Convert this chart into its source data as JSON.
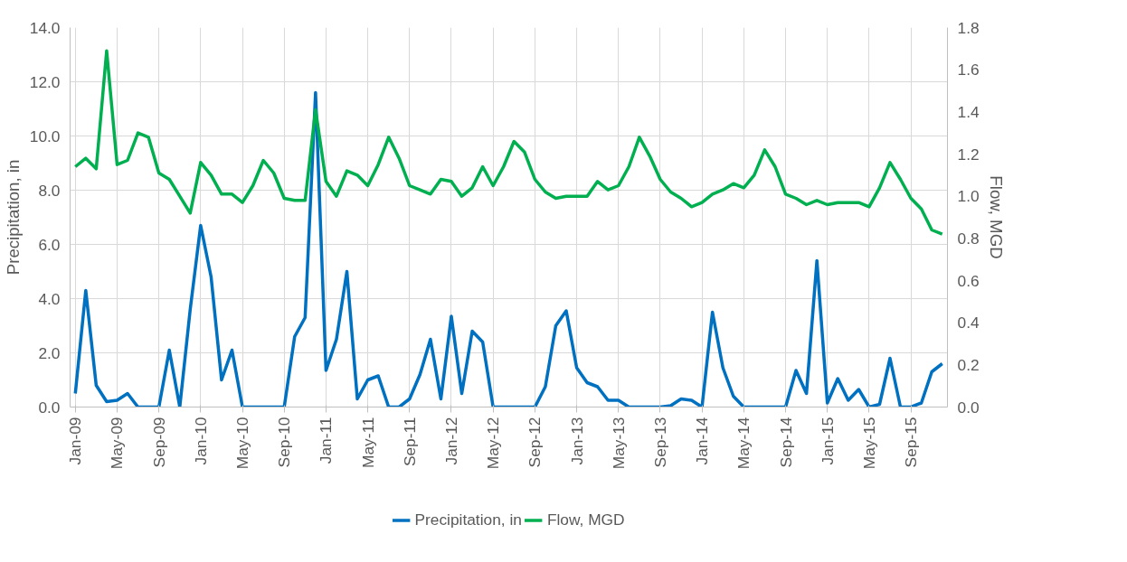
{
  "chart_data": {
    "type": "line",
    "categories": [
      "Jan-09",
      null,
      null,
      null,
      "May-09",
      null,
      null,
      null,
      "Sep-09",
      null,
      null,
      null,
      "Jan-10",
      null,
      null,
      null,
      "May-10",
      null,
      null,
      null,
      "Sep-10",
      null,
      null,
      null,
      "Jan-11",
      null,
      null,
      null,
      "May-11",
      null,
      null,
      null,
      "Sep-11",
      null,
      null,
      null,
      "Jan-12",
      null,
      null,
      null,
      "May-12",
      null,
      null,
      null,
      "Sep-12",
      null,
      null,
      null,
      "Jan-13",
      null,
      null,
      null,
      "May-13",
      null,
      null,
      null,
      "Sep-13",
      null,
      null,
      null,
      "Jan-14",
      null,
      null,
      null,
      "May-14",
      null,
      null,
      null,
      "Sep-14",
      null,
      null,
      null,
      "Jan-15",
      null,
      null,
      null,
      "May-15",
      null,
      null,
      null,
      "Sep-15",
      null,
      null,
      null
    ],
    "series": [
      {
        "name": "Precipitation, in",
        "color": "#0070c0",
        "values": [
          0.5,
          4.3,
          0.8,
          0.2,
          0.25,
          0.5,
          0,
          0,
          0,
          2.1,
          0,
          3.6,
          6.7,
          4.8,
          1.0,
          2.1,
          0,
          0,
          0,
          0,
          0,
          2.6,
          3.3,
          11.6,
          1.35,
          2.5,
          5.0,
          0.3,
          1.0,
          1.15,
          0,
          0,
          0.3,
          1.2,
          2.5,
          0.3,
          3.35,
          0.5,
          2.8,
          2.4,
          0,
          0,
          0,
          0,
          0,
          0.75,
          3.0,
          3.55,
          1.45,
          0.9,
          0.75,
          0.25,
          0.25,
          0,
          0,
          0,
          0,
          0.05,
          0.3,
          0.25,
          0,
          3.5,
          1.45,
          0.4,
          0,
          0,
          0,
          0,
          0,
          1.35,
          0.5,
          5.4,
          0.15,
          1.05,
          0.25,
          0.65,
          0,
          0.1,
          1.8,
          0,
          0,
          0.15,
          1.3,
          1.6
        ]
      },
      {
        "name": "Flow, MGD",
        "color": "#00b050",
        "axis": "y2",
        "values": [
          1.14,
          1.18,
          1.13,
          1.69,
          1.15,
          1.17,
          1.3,
          1.28,
          1.11,
          1.08,
          1.0,
          0.92,
          1.16,
          1.1,
          1.01,
          1.01,
          0.97,
          1.05,
          1.17,
          1.11,
          0.99,
          0.98,
          0.98,
          1.41,
          1.07,
          1.0,
          1.12,
          1.1,
          1.05,
          1.15,
          1.28,
          1.18,
          1.05,
          1.03,
          1.01,
          1.08,
          1.07,
          1.0,
          1.04,
          1.14,
          1.05,
          1.14,
          1.26,
          1.21,
          1.08,
          1.02,
          0.99,
          1.0,
          1.0,
          1.0,
          1.07,
          1.03,
          1.05,
          1.14,
          1.28,
          1.19,
          1.08,
          1.02,
          0.99,
          0.95,
          0.97,
          1.01,
          1.03,
          1.06,
          1.04,
          1.1,
          1.22,
          1.14,
          1.01,
          0.99,
          0.96,
          0.98,
          0.96,
          0.97,
          0.97,
          0.97,
          0.95,
          1.04,
          1.16,
          1.08,
          0.99,
          0.94,
          0.84,
          0.82
        ]
      }
    ],
    "ylabel": "Precipitation, in",
    "y2label": "Flow, MGD",
    "ylim": [
      0,
      14
    ],
    "yticks": [
      {
        "value": 0,
        "label": "0.0"
      },
      {
        "value": 2,
        "label": "2.0"
      },
      {
        "value": 4,
        "label": "4.0"
      },
      {
        "value": 6,
        "label": "6.0"
      },
      {
        "value": 8,
        "label": "8.0"
      },
      {
        "value": 10,
        "label": "10.0"
      },
      {
        "value": 12,
        "label": "12.0"
      },
      {
        "value": 14,
        "label": "14.0"
      }
    ],
    "y2lim": [
      0,
      1.8
    ],
    "y2ticks": [
      {
        "value": 0,
        "label": "0.0"
      },
      {
        "value": 0.2,
        "label": "0.2"
      },
      {
        "value": 0.4,
        "label": "0.4"
      },
      {
        "value": 0.6,
        "label": "0.6"
      },
      {
        "value": 0.8,
        "label": "0.8"
      },
      {
        "value": 1.0,
        "label": "1.0"
      },
      {
        "value": 1.2,
        "label": "1.2"
      },
      {
        "value": 1.4,
        "label": "1.4"
      },
      {
        "value": 1.6,
        "label": "1.6"
      },
      {
        "value": 1.8,
        "label": "1.8"
      }
    ],
    "grid": true,
    "legend": "bottom",
    "marker": "none",
    "line_style": "solid"
  }
}
